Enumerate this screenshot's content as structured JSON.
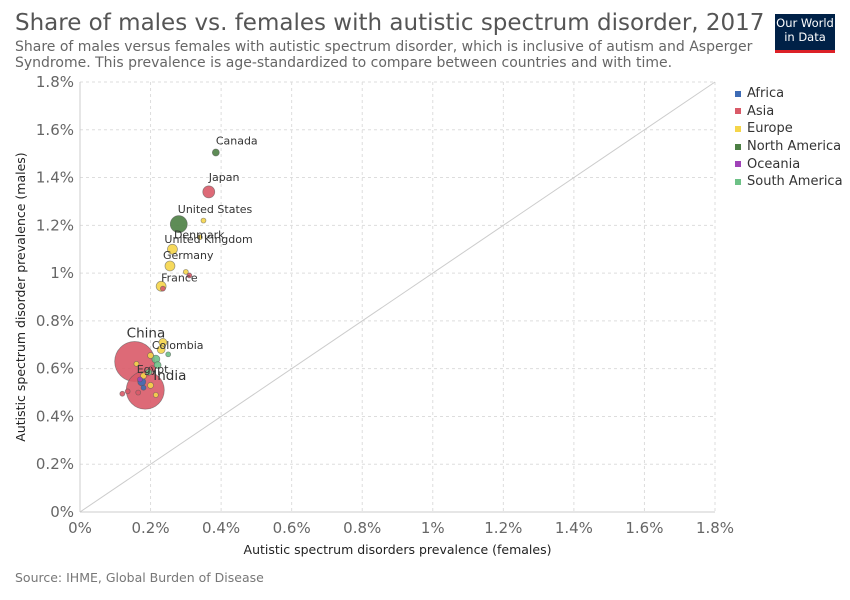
{
  "header": {
    "title": "Share of males vs. females with autistic spectrum disorder, 2017",
    "subtitle": "Share of males versus females with autistic spectrum disorder, which is inclusive of autism and Asperger Syndrome. This prevalence is age-standardized to compare between countries and with time.",
    "logo_line1": "Our World",
    "logo_line2": "in Data"
  },
  "footer": {
    "source": "Source: IHME, Global Burden of Disease"
  },
  "legend": [
    {
      "label": "Africa",
      "color": "#3d6bb5"
    },
    {
      "label": "Asia",
      "color": "#d95a68"
    },
    {
      "label": "Europe",
      "color": "#f5d54a"
    },
    {
      "label": "North America",
      "color": "#4c7f44"
    },
    {
      "label": "Oceania",
      "color": "#a042b8"
    },
    {
      "label": "South America",
      "color": "#6dc186"
    }
  ],
  "chart_data": {
    "type": "scatter",
    "xlabel": "Autistic spectrum disorders prevalence (females)",
    "ylabel": "Autistic spectrum disorder prevalence (males)",
    "xlim": [
      0,
      1.8
    ],
    "ylim": [
      0,
      1.8
    ],
    "x_ticks": [
      "0%",
      "0.2%",
      "0.4%",
      "0.6%",
      "0.8%",
      "1%",
      "1.2%",
      "1.4%",
      "1.6%",
      "1.8%"
    ],
    "y_ticks": [
      "0%",
      "0.2%",
      "0.4%",
      "0.6%",
      "0.8%",
      "1%",
      "1.2%",
      "1.4%",
      "1.6%",
      "1.8%"
    ],
    "grid": true,
    "reference_line": "y = x",
    "legend_position": "right",
    "points": [
      {
        "label": "China",
        "x": 0.155,
        "y": 0.63,
        "region": "Asia",
        "size": 20,
        "big": true
      },
      {
        "label": "India",
        "x": 0.185,
        "y": 0.51,
        "region": "Asia",
        "size": 19,
        "big": true
      },
      {
        "label": "Canada",
        "x": 0.385,
        "y": 1.505,
        "region": "North America",
        "size": 3.5
      },
      {
        "label": "Japan",
        "x": 0.365,
        "y": 1.34,
        "region": "Asia",
        "size": 6
      },
      {
        "label": "United States",
        "x": 0.28,
        "y": 1.205,
        "region": "North America",
        "size": 8.5
      },
      {
        "label": "Denmark",
        "x": 0.34,
        "y": 1.15,
        "region": "Europe",
        "size": 2.5
      },
      {
        "label": "United Kingdom",
        "x": 0.262,
        "y": 1.1,
        "region": "Europe",
        "size": 5
      },
      {
        "label": "Germany",
        "x": 0.255,
        "y": 1.03,
        "region": "Europe",
        "size": 5
      },
      {
        "label": "France",
        "x": 0.23,
        "y": 0.945,
        "region": "Europe",
        "size": 5
      },
      {
        "label": "Colombia",
        "x": 0.215,
        "y": 0.64,
        "region": "South America",
        "size": 4
      },
      {
        "label": "Egypt",
        "x": 0.175,
        "y": 0.545,
        "region": "Africa",
        "size": 4
      },
      {
        "label": "",
        "x": 0.31,
        "y": 0.99,
        "region": "Asia",
        "size": 2.5
      },
      {
        "label": "",
        "x": 0.235,
        "y": 0.935,
        "region": "Asia",
        "size": 2.5
      },
      {
        "label": "",
        "x": 0.3,
        "y": 1.005,
        "region": "Europe",
        "size": 2.5
      },
      {
        "label": "",
        "x": 0.35,
        "y": 1.22,
        "region": "Europe",
        "size": 2.5
      },
      {
        "label": "",
        "x": 0.235,
        "y": 0.71,
        "region": "Europe",
        "size": 4
      },
      {
        "label": "",
        "x": 0.23,
        "y": 0.68,
        "region": "Europe",
        "size": 4
      },
      {
        "label": "",
        "x": 0.2,
        "y": 0.655,
        "region": "Europe",
        "size": 3
      },
      {
        "label": "",
        "x": 0.22,
        "y": 0.615,
        "region": "South America",
        "size": 3.5
      },
      {
        "label": "",
        "x": 0.205,
        "y": 0.6,
        "region": "Asia",
        "size": 3
      },
      {
        "label": "",
        "x": 0.195,
        "y": 0.585,
        "region": "South America",
        "size": 3
      },
      {
        "label": "",
        "x": 0.18,
        "y": 0.57,
        "region": "Europe",
        "size": 3
      },
      {
        "label": "",
        "x": 0.17,
        "y": 0.555,
        "region": "Oceania",
        "size": 2.5
      },
      {
        "label": "",
        "x": 0.2,
        "y": 0.53,
        "region": "Europe",
        "size": 3
      },
      {
        "label": "",
        "x": 0.18,
        "y": 0.52,
        "region": "Africa",
        "size": 2.5
      },
      {
        "label": "",
        "x": 0.165,
        "y": 0.5,
        "region": "Asia",
        "size": 2.5
      },
      {
        "label": "",
        "x": 0.135,
        "y": 0.505,
        "region": "Asia",
        "size": 2.5
      },
      {
        "label": "",
        "x": 0.12,
        "y": 0.495,
        "region": "Asia",
        "size": 2.5
      },
      {
        "label": "",
        "x": 0.215,
        "y": 0.49,
        "region": "Europe",
        "size": 2.5
      },
      {
        "label": "",
        "x": 0.16,
        "y": 0.62,
        "region": "Europe",
        "size": 2.5
      },
      {
        "label": "",
        "x": 0.25,
        "y": 0.66,
        "region": "South America",
        "size": 2.5
      }
    ]
  }
}
